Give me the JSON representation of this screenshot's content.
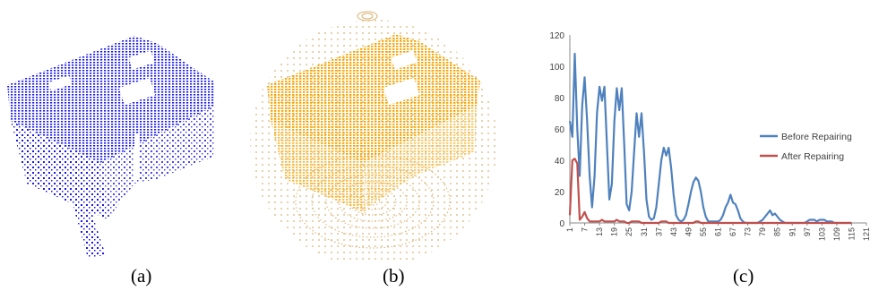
{
  "captions": {
    "a": "(a)",
    "b": "(b)",
    "c": "(c)"
  },
  "colors": {
    "cloud_a": "#1a1ae8",
    "cloud_b": "#f5a300",
    "before": "#4f81bd",
    "after": "#c0504d",
    "axis": "#888888"
  },
  "chart_data": {
    "type": "line",
    "title": "",
    "xlabel": "",
    "ylabel": "",
    "ylim": [
      0,
      120
    ],
    "yticks": [
      0,
      20,
      40,
      60,
      80,
      100,
      120
    ],
    "xlim": [
      1,
      121
    ],
    "xticks": [
      1,
      7,
      13,
      19,
      25,
      31,
      37,
      43,
      49,
      55,
      61,
      67,
      73,
      79,
      85,
      91,
      97,
      103,
      109,
      115,
      121
    ],
    "xtick_labels": [
      "1",
      "7",
      "13",
      "19",
      "25",
      "31",
      "37",
      "43",
      "49",
      "55",
      "61",
      "67",
      "73",
      "79",
      "85",
      "91",
      "97",
      "103",
      "109",
      "115",
      "121"
    ],
    "legend_position": "right",
    "series": [
      {
        "name": "Before Repairing",
        "color": "#4f81bd",
        "points": [
          [
            1,
            65
          ],
          [
            2,
            55
          ],
          [
            3,
            108
          ],
          [
            4,
            60
          ],
          [
            5,
            30
          ],
          [
            6,
            75
          ],
          [
            7,
            93
          ],
          [
            8,
            65
          ],
          [
            9,
            30
          ],
          [
            10,
            10
          ],
          [
            11,
            30
          ],
          [
            12,
            70
          ],
          [
            13,
            87
          ],
          [
            14,
            78
          ],
          [
            15,
            87
          ],
          [
            16,
            50
          ],
          [
            17,
            15
          ],
          [
            18,
            25
          ],
          [
            19,
            65
          ],
          [
            20,
            86
          ],
          [
            21,
            72
          ],
          [
            22,
            86
          ],
          [
            23,
            50
          ],
          [
            24,
            12
          ],
          [
            25,
            8
          ],
          [
            26,
            20
          ],
          [
            27,
            45
          ],
          [
            28,
            70
          ],
          [
            29,
            55
          ],
          [
            30,
            70
          ],
          [
            31,
            45
          ],
          [
            32,
            15
          ],
          [
            33,
            4
          ],
          [
            34,
            2
          ],
          [
            35,
            3
          ],
          [
            36,
            10
          ],
          [
            37,
            25
          ],
          [
            38,
            40
          ],
          [
            39,
            48
          ],
          [
            40,
            43
          ],
          [
            41,
            48
          ],
          [
            42,
            35
          ],
          [
            43,
            18
          ],
          [
            44,
            5
          ],
          [
            45,
            2
          ],
          [
            46,
            1
          ],
          [
            47,
            2
          ],
          [
            48,
            5
          ],
          [
            49,
            12
          ],
          [
            50,
            20
          ],
          [
            51,
            26
          ],
          [
            52,
            29
          ],
          [
            53,
            27
          ],
          [
            54,
            20
          ],
          [
            55,
            10
          ],
          [
            56,
            4
          ],
          [
            57,
            1
          ],
          [
            58,
            1
          ],
          [
            59,
            1
          ],
          [
            60,
            1
          ],
          [
            61,
            1
          ],
          [
            62,
            2
          ],
          [
            63,
            5
          ],
          [
            64,
            10
          ],
          [
            65,
            13
          ],
          [
            66,
            18
          ],
          [
            67,
            13
          ],
          [
            68,
            12
          ],
          [
            69,
            8
          ],
          [
            70,
            3
          ],
          [
            71,
            1
          ],
          [
            72,
            0
          ],
          [
            73,
            0
          ],
          [
            74,
            0
          ],
          [
            75,
            0
          ],
          [
            76,
            0
          ],
          [
            77,
            0
          ],
          [
            78,
            1
          ],
          [
            79,
            2
          ],
          [
            80,
            4
          ],
          [
            81,
            6
          ],
          [
            82,
            8
          ],
          [
            83,
            5
          ],
          [
            84,
            6
          ],
          [
            85,
            4
          ],
          [
            86,
            2
          ],
          [
            87,
            1
          ],
          [
            88,
            0
          ],
          [
            89,
            0
          ],
          [
            90,
            0
          ],
          [
            91,
            0
          ],
          [
            92,
            0
          ],
          [
            93,
            0
          ],
          [
            94,
            0
          ],
          [
            95,
            0
          ],
          [
            96,
            0
          ],
          [
            97,
            1
          ],
          [
            98,
            2
          ],
          [
            99,
            2
          ],
          [
            100,
            2
          ],
          [
            101,
            1
          ],
          [
            102,
            2
          ],
          [
            103,
            2
          ],
          [
            104,
            2
          ],
          [
            105,
            1
          ],
          [
            106,
            1
          ],
          [
            107,
            1
          ],
          [
            108,
            0
          ],
          [
            109,
            0
          ],
          [
            110,
            0
          ],
          [
            111,
            0
          ],
          [
            112,
            0
          ],
          [
            113,
            0
          ],
          [
            114,
            0
          ],
          [
            115,
            0
          ]
        ]
      },
      {
        "name": "After Repairing",
        "color": "#c0504d",
        "points": [
          [
            1,
            5
          ],
          [
            2,
            40
          ],
          [
            3,
            41
          ],
          [
            4,
            38
          ],
          [
            5,
            2
          ],
          [
            6,
            4
          ],
          [
            7,
            7
          ],
          [
            8,
            3
          ],
          [
            9,
            1
          ],
          [
            10,
            1
          ],
          [
            11,
            1
          ],
          [
            12,
            1
          ],
          [
            13,
            1
          ],
          [
            14,
            2
          ],
          [
            15,
            1
          ],
          [
            16,
            1
          ],
          [
            17,
            1
          ],
          [
            18,
            1
          ],
          [
            19,
            1
          ],
          [
            20,
            2
          ],
          [
            21,
            1
          ],
          [
            22,
            1
          ],
          [
            23,
            1
          ],
          [
            24,
            0
          ],
          [
            25,
            0
          ],
          [
            26,
            1
          ],
          [
            27,
            1
          ],
          [
            28,
            1
          ],
          [
            29,
            1
          ],
          [
            30,
            0
          ],
          [
            31,
            0
          ],
          [
            32,
            0
          ],
          [
            33,
            0
          ],
          [
            34,
            0
          ],
          [
            35,
            0
          ],
          [
            36,
            0
          ],
          [
            37,
            0
          ],
          [
            38,
            1
          ],
          [
            39,
            1
          ],
          [
            40,
            1
          ],
          [
            41,
            0
          ],
          [
            42,
            0
          ],
          [
            43,
            0
          ],
          [
            44,
            0
          ],
          [
            45,
            0
          ],
          [
            46,
            0
          ],
          [
            47,
            0
          ],
          [
            48,
            0
          ],
          [
            49,
            0
          ],
          [
            50,
            0
          ],
          [
            51,
            0
          ],
          [
            52,
            1
          ],
          [
            53,
            1
          ],
          [
            54,
            0
          ],
          [
            55,
            0
          ],
          [
            56,
            0
          ],
          [
            57,
            0
          ],
          [
            58,
            0
          ],
          [
            59,
            0
          ],
          [
            60,
            0
          ],
          [
            61,
            0
          ],
          [
            62,
            0
          ],
          [
            63,
            0
          ],
          [
            64,
            0
          ],
          [
            65,
            0
          ],
          [
            66,
            0
          ],
          [
            67,
            0
          ],
          [
            68,
            0
          ],
          [
            69,
            0
          ],
          [
            70,
            0
          ],
          [
            71,
            0
          ],
          [
            72,
            0
          ],
          [
            73,
            0
          ],
          [
            74,
            0
          ],
          [
            75,
            0
          ],
          [
            76,
            0
          ],
          [
            77,
            0
          ],
          [
            78,
            0
          ],
          [
            79,
            0
          ],
          [
            80,
            0
          ],
          [
            81,
            0
          ],
          [
            82,
            0
          ],
          [
            83,
            0
          ],
          [
            84,
            0
          ],
          [
            85,
            0
          ],
          [
            86,
            0
          ],
          [
            87,
            0
          ],
          [
            88,
            0
          ],
          [
            89,
            0
          ],
          [
            90,
            0
          ],
          [
            91,
            0
          ],
          [
            92,
            0
          ],
          [
            93,
            0
          ],
          [
            94,
            0
          ],
          [
            95,
            0
          ],
          [
            96,
            0
          ],
          [
            97,
            0
          ],
          [
            98,
            0
          ],
          [
            99,
            0
          ],
          [
            100,
            0
          ],
          [
            101,
            0
          ],
          [
            102,
            0
          ],
          [
            103,
            0
          ],
          [
            104,
            0
          ],
          [
            105,
            0
          ],
          [
            106,
            0
          ],
          [
            107,
            0
          ],
          [
            108,
            0
          ],
          [
            109,
            0
          ],
          [
            110,
            0
          ],
          [
            111,
            0
          ],
          [
            112,
            0
          ],
          [
            113,
            0
          ],
          [
            114,
            0
          ],
          [
            115,
            0
          ]
        ]
      }
    ]
  }
}
